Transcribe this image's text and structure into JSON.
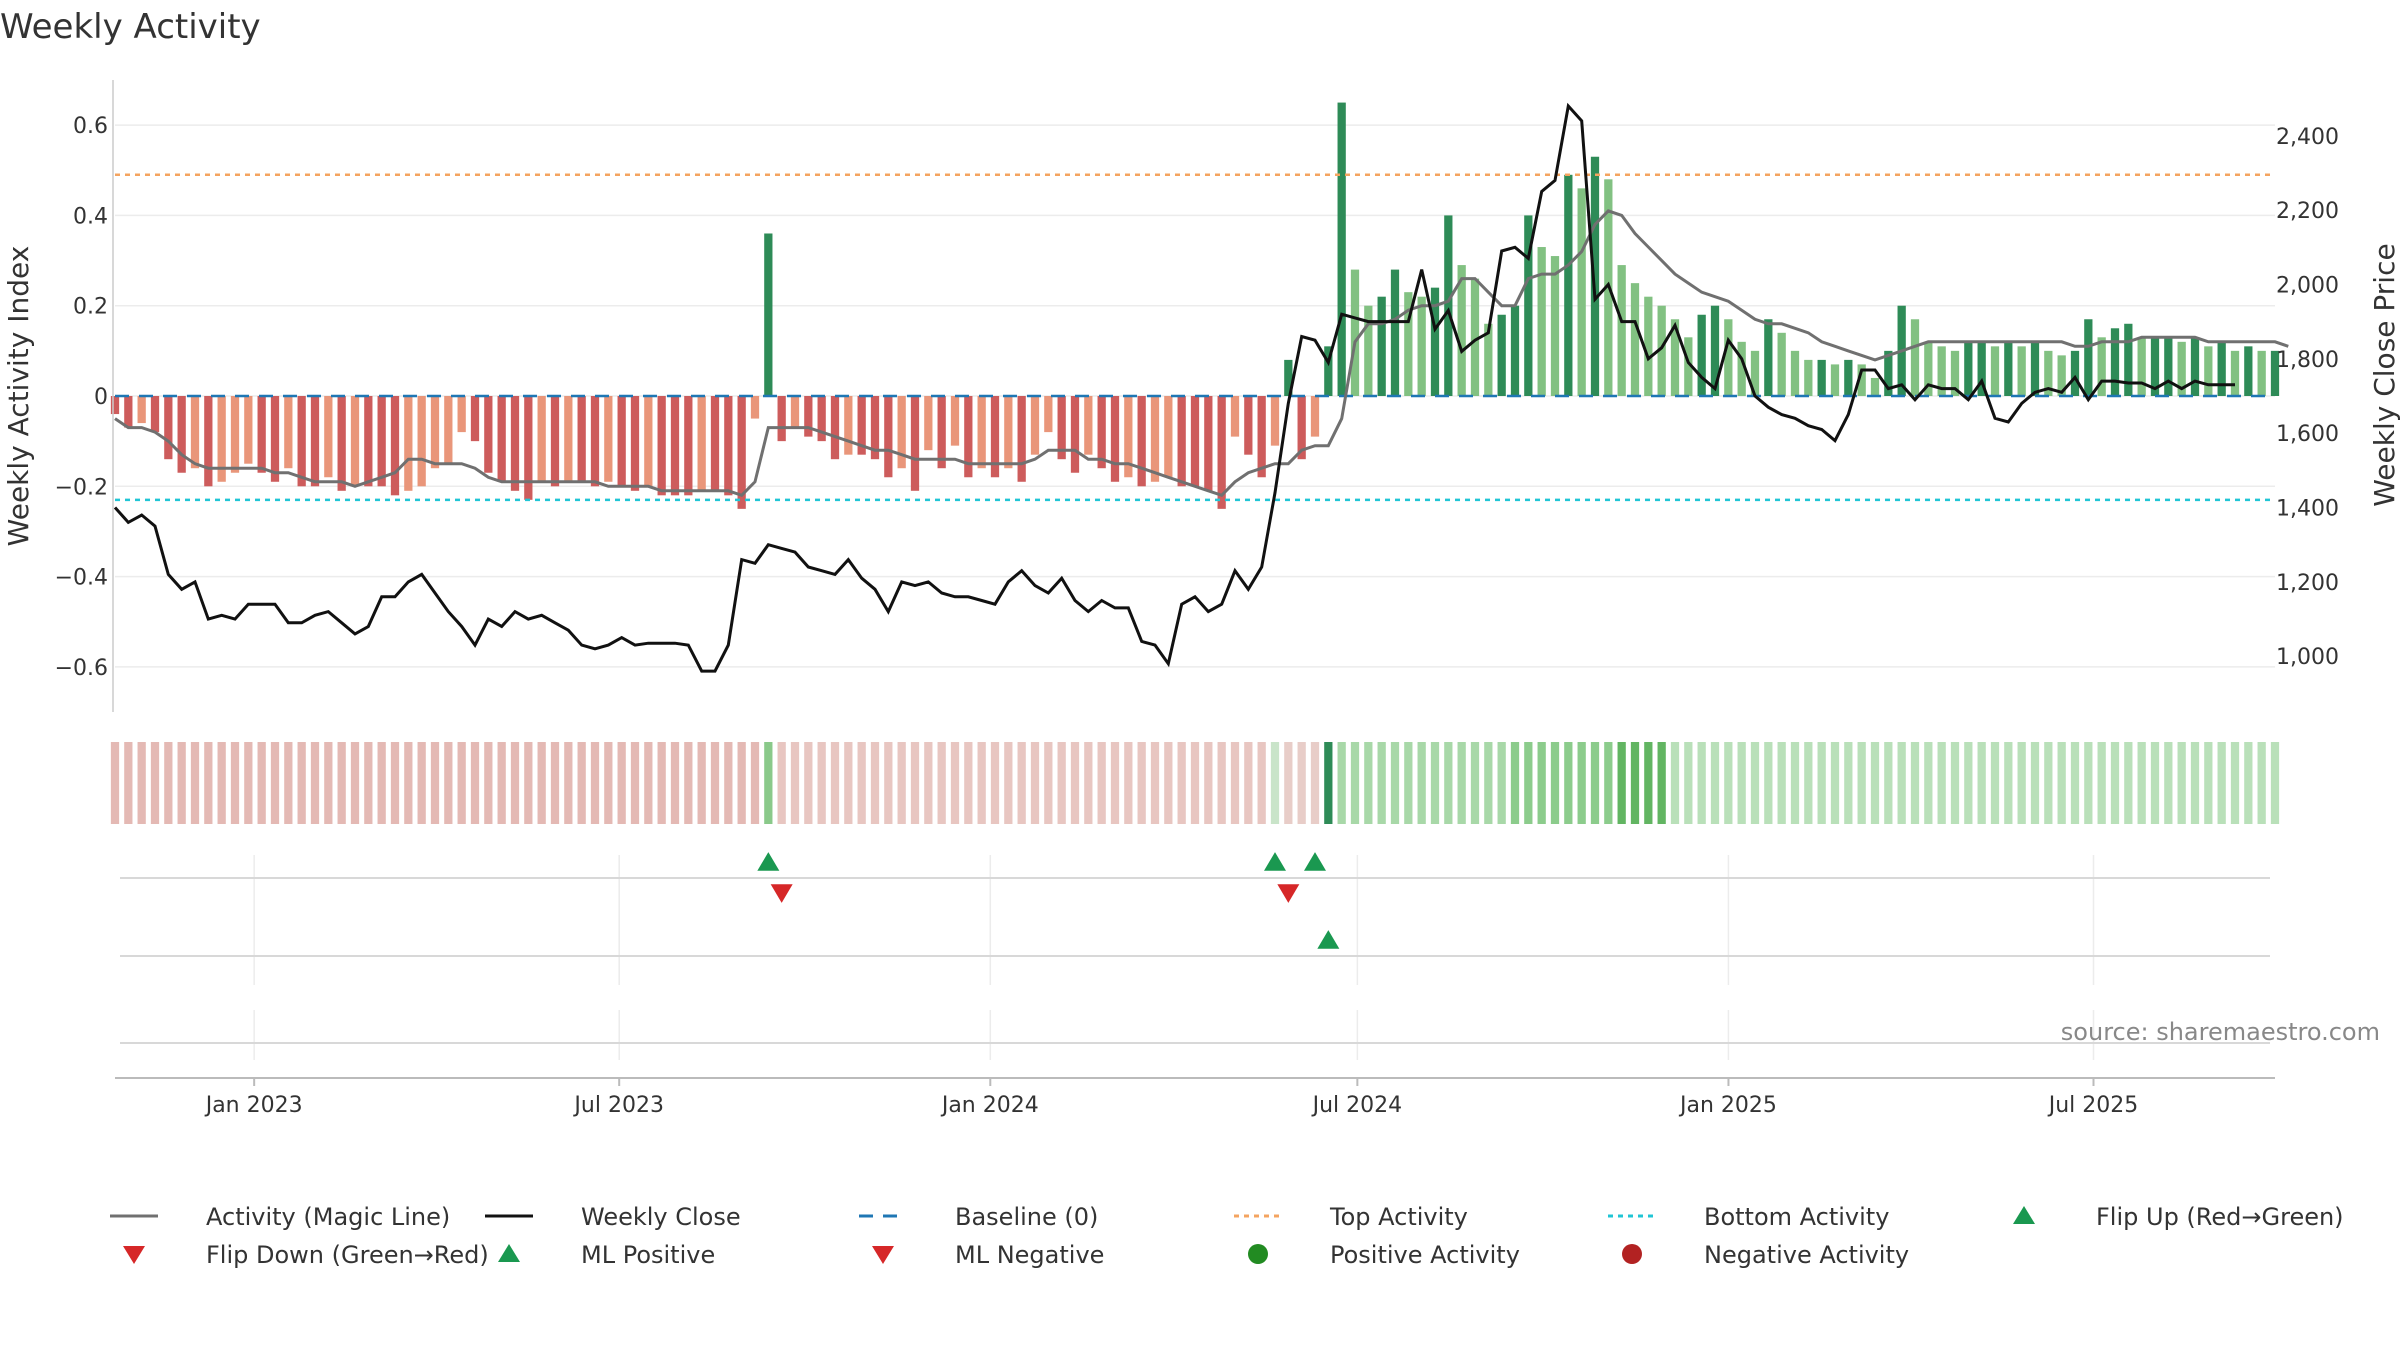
{
  "chart_data": {
    "type": "bar",
    "title": "Weekly Activity",
    "ylabel_left": "Weekly Activity Index",
    "ylabel_right": "Weekly Close Price",
    "source_text": "source: sharemaestro.com",
    "ylim_left": [
      -0.7,
      0.7
    ],
    "ylim_right": [
      850,
      2550
    ],
    "yticks_left": [
      0.6,
      0.4,
      0.2,
      0,
      -0.2,
      -0.4,
      -0.6
    ],
    "yticks_left_labels": [
      "0.6",
      "0.4",
      "0.2",
      "0",
      "−0.2",
      "−0.4",
      "−0.6"
    ],
    "yticks_right": [
      2400,
      2200,
      2000,
      1800,
      1600,
      1400,
      1200,
      1000
    ],
    "yticks_right_labels": [
      "2,400",
      "2,200",
      "2,000",
      "1,800",
      "1,600",
      "1,400",
      "1,200",
      "1,000"
    ],
    "x_start": "2022-10-24",
    "x_end": "2025-09-29",
    "xticks": [
      "2023-01-01",
      "2023-07-01",
      "2024-01-01",
      "2024-07-01",
      "2025-01-01",
      "2025-07-01"
    ],
    "xtick_labels": [
      "Jan 2023",
      "Jul 2023",
      "Jan 2024",
      "Jul 2024",
      "Jan 2025",
      "Jul 2025"
    ],
    "top_activity": 0.49,
    "bottom_activity": -0.23,
    "baseline": 0,
    "grid": true,
    "colors": {
      "pos_dark": "#2e8b57",
      "pos_light": "#82c182",
      "neg_dark": "#cd5c5c",
      "neg_light": "#e9967a",
      "magic_line": "#707070",
      "close_line": "#111111",
      "baseline": "#1f77b4",
      "top": "#f4a460",
      "bottom": "#20c5d5",
      "flip_up": "#1a9850",
      "flip_down": "#d62728",
      "pos_marker": "#228b22",
      "neg_marker": "#b22222"
    },
    "activity": [
      -0.04,
      -0.07,
      -0.06,
      -0.08,
      -0.14,
      -0.17,
      -0.16,
      -0.2,
      -0.19,
      -0.17,
      -0.15,
      -0.17,
      -0.19,
      -0.16,
      -0.2,
      -0.2,
      -0.18,
      -0.21,
      -0.2,
      -0.2,
      -0.2,
      -0.22,
      -0.21,
      -0.2,
      -0.16,
      -0.15,
      -0.08,
      -0.1,
      -0.17,
      -0.19,
      -0.21,
      -0.23,
      -0.19,
      -0.2,
      -0.19,
      -0.19,
      -0.2,
      -0.19,
      -0.2,
      -0.21,
      -0.2,
      -0.22,
      -0.22,
      -0.22,
      -0.21,
      -0.21,
      -0.22,
      -0.25,
      -0.05,
      0.36,
      -0.1,
      -0.07,
      -0.09,
      -0.1,
      -0.14,
      -0.13,
      -0.13,
      -0.14,
      -0.18,
      -0.16,
      -0.21,
      -0.12,
      -0.16,
      -0.11,
      -0.18,
      -0.16,
      -0.18,
      -0.16,
      -0.19,
      -0.13,
      -0.08,
      -0.14,
      -0.17,
      -0.13,
      -0.16,
      -0.19,
      -0.18,
      -0.2,
      -0.19,
      -0.18,
      -0.2,
      -0.2,
      -0.21,
      -0.25,
      -0.09,
      -0.13,
      -0.18,
      -0.11,
      0.08,
      -0.14,
      -0.09,
      0.11,
      0.65,
      0.28,
      0.2,
      0.22,
      0.28,
      0.23,
      0.22,
      0.24,
      0.4,
      0.29,
      0.26,
      0.16,
      0.18,
      0.2,
      0.4,
      0.33,
      0.31,
      0.49,
      0.46,
      0.53,
      0.48,
      0.29,
      0.25,
      0.22,
      0.2,
      0.17,
      0.13,
      0.18,
      0.2,
      0.17,
      0.12,
      0.1,
      0.17,
      0.14,
      0.1,
      0.08,
      0.08,
      0.07,
      0.08,
      0.07,
      0.04,
      0.1,
      0.2,
      0.17,
      0.12,
      0.11,
      0.1,
      0.12,
      0.12,
      0.11,
      0.12,
      0.11,
      0.12,
      0.1,
      0.09,
      0.1,
      0.17,
      0.13,
      0.15,
      0.16,
      0.13,
      0.13,
      0.13,
      0.12,
      0.13,
      0.11,
      0.12,
      0.1,
      0.11,
      0.1,
      0.1
    ],
    "magic_line": [
      -0.05,
      -0.07,
      -0.07,
      -0.08,
      -0.1,
      -0.13,
      -0.15,
      -0.16,
      -0.16,
      -0.16,
      -0.16,
      -0.16,
      -0.17,
      -0.17,
      -0.18,
      -0.19,
      -0.19,
      -0.19,
      -0.2,
      -0.19,
      -0.18,
      -0.17,
      -0.14,
      -0.14,
      -0.15,
      -0.15,
      -0.15,
      -0.16,
      -0.18,
      -0.19,
      -0.19,
      -0.19,
      -0.19,
      -0.19,
      -0.19,
      -0.19,
      -0.19,
      -0.2,
      -0.2,
      -0.2,
      -0.2,
      -0.21,
      -0.21,
      -0.21,
      -0.21,
      -0.21,
      -0.21,
      -0.22,
      -0.19,
      -0.07,
      -0.07,
      -0.07,
      -0.07,
      -0.08,
      -0.09,
      -0.1,
      -0.11,
      -0.12,
      -0.12,
      -0.13,
      -0.14,
      -0.14,
      -0.14,
      -0.14,
      -0.15,
      -0.15,
      -0.15,
      -0.15,
      -0.15,
      -0.14,
      -0.12,
      -0.12,
      -0.12,
      -0.14,
      -0.14,
      -0.15,
      -0.15,
      -0.16,
      -0.17,
      -0.18,
      -0.19,
      -0.2,
      -0.21,
      -0.22,
      -0.19,
      -0.17,
      -0.16,
      -0.15,
      -0.15,
      -0.12,
      -0.11,
      -0.11,
      -0.05,
      0.12,
      0.16,
      0.16,
      0.17,
      0.19,
      0.2,
      0.2,
      0.21,
      0.26,
      0.26,
      0.23,
      0.2,
      0.2,
      0.26,
      0.27,
      0.27,
      0.29,
      0.32,
      0.38,
      0.41,
      0.4,
      0.36,
      0.33,
      0.3,
      0.27,
      0.25,
      0.23,
      0.22,
      0.21,
      0.19,
      0.17,
      0.16,
      0.16,
      0.15,
      0.14,
      0.12,
      0.11,
      0.1,
      0.09,
      0.08,
      0.09,
      0.1,
      0.11,
      0.12,
      0.12,
      0.12,
      0.12,
      0.12,
      0.12,
      0.12,
      0.12,
      0.12,
      0.12,
      0.12,
      0.11,
      0.11,
      0.12,
      0.12,
      0.12,
      0.13,
      0.13,
      0.13,
      0.13,
      0.13,
      0.12,
      0.12,
      0.12,
      0.12,
      0.12,
      0.12,
      0.11
    ],
    "close": [
      1400,
      1360,
      1380,
      1350,
      1220,
      1180,
      1200,
      1100,
      1110,
      1100,
      1140,
      1140,
      1140,
      1090,
      1090,
      1110,
      1120,
      1090,
      1060,
      1080,
      1160,
      1160,
      1200,
      1220,
      1170,
      1120,
      1080,
      1030,
      1100,
      1080,
      1120,
      1100,
      1110,
      1090,
      1070,
      1030,
      1020,
      1030,
      1050,
      1030,
      1035,
      1035,
      1035,
      1030,
      960,
      960,
      1030,
      1260,
      1250,
      1300,
      1290,
      1280,
      1240,
      1230,
      1220,
      1260,
      1210,
      1180,
      1120,
      1200,
      1190,
      1200,
      1170,
      1160,
      1160,
      1150,
      1140,
      1200,
      1230,
      1190,
      1170,
      1210,
      1150,
      1120,
      1150,
      1130,
      1130,
      1040,
      1030,
      980,
      1140,
      1160,
      1120,
      1140,
      1230,
      1180,
      1240,
      1440,
      1680,
      1860,
      1850,
      1790,
      1920,
      1910,
      1900,
      1900,
      1900,
      1900,
      2040,
      1880,
      1930,
      1820,
      1850,
      1870,
      2090,
      2100,
      2070,
      2250,
      2280,
      2480,
      2440,
      1960,
      2000,
      1900,
      1900,
      1800,
      1830,
      1890,
      1790,
      1750,
      1720,
      1850,
      1800,
      1700,
      1670,
      1650,
      1640,
      1620,
      1610,
      1580,
      1650,
      1770,
      1770,
      1720,
      1730,
      1690,
      1730,
      1720,
      1720,
      1690,
      1740,
      1640,
      1630,
      1680,
      1710,
      1720,
      1710,
      1750,
      1690,
      1740,
      1740,
      1735,
      1735,
      1720,
      1740,
      1720,
      1740,
      1730,
      1730,
      1730
    ],
    "strip": [
      {
        "range": [
          0,
          48
        ],
        "color": "#e4b9b4"
      },
      {
        "range": [
          49,
          49
        ],
        "color": "#8ac98a"
      },
      {
        "range": [
          50,
          86
        ],
        "color": "#e8c6c1"
      },
      {
        "range": [
          87,
          87
        ],
        "color": "#c9e4c9"
      },
      {
        "range": [
          88,
          90
        ],
        "color": "#e8cdc8"
      },
      {
        "range": [
          91,
          91
        ],
        "color": "#2e8b57"
      },
      {
        "range": [
          92,
          104
        ],
        "color": "#a8d8a8"
      },
      {
        "range": [
          105,
          112
        ],
        "color": "#8ccc8c"
      },
      {
        "range": [
          113,
          116
        ],
        "color": "#62b562"
      },
      {
        "range": [
          117,
          162
        ],
        "color": "#b9e0b9"
      }
    ],
    "markers": {
      "flip_up_idx": [
        49,
        87,
        90
      ],
      "flip_down_idx": [
        50,
        88
      ],
      "ml_positive_idx": [
        91
      ],
      "ml_negative_idx": [],
      "positive_activity_idx": [],
      "negative_activity_idx": []
    },
    "legend": [
      {
        "key": "magic",
        "label": "Activity (Magic Line)"
      },
      {
        "key": "close",
        "label": "Weekly Close"
      },
      {
        "key": "baseline",
        "label": "Baseline (0)"
      },
      {
        "key": "top",
        "label": "Top Activity"
      },
      {
        "key": "bottom",
        "label": "Bottom Activity"
      },
      {
        "key": "flipup",
        "label": "Flip Up (Red→Green)"
      },
      {
        "key": "flipdown",
        "label": "Flip Down (Green→Red)"
      },
      {
        "key": "mlpos",
        "label": "ML Positive"
      },
      {
        "key": "mlneg",
        "label": "ML Negative"
      },
      {
        "key": "posact",
        "label": "Positive Activity"
      },
      {
        "key": "negact",
        "label": "Negative Activity"
      }
    ],
    "legend_placement": "bottom"
  }
}
